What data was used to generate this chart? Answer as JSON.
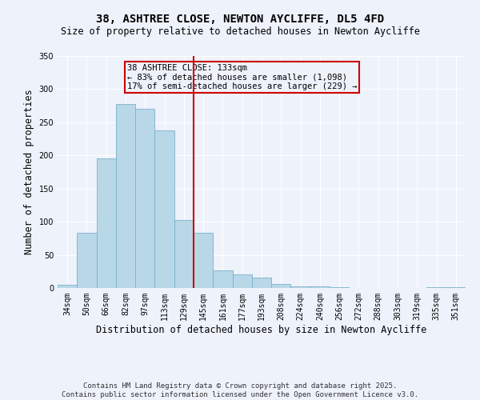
{
  "title": "38, ASHTREE CLOSE, NEWTON AYCLIFFE, DL5 4FD",
  "subtitle": "Size of property relative to detached houses in Newton Aycliffe",
  "xlabel": "Distribution of detached houses by size in Newton Aycliffe",
  "ylabel": "Number of detached properties",
  "categories": [
    "34sqm",
    "50sqm",
    "66sqm",
    "82sqm",
    "97sqm",
    "113sqm",
    "129sqm",
    "145sqm",
    "161sqm",
    "177sqm",
    "193sqm",
    "208sqm",
    "224sqm",
    "240sqm",
    "256sqm",
    "272sqm",
    "288sqm",
    "303sqm",
    "319sqm",
    "335sqm",
    "351sqm"
  ],
  "values": [
    5,
    83,
    195,
    277,
    270,
    238,
    103,
    83,
    27,
    20,
    16,
    6,
    3,
    2,
    1,
    0,
    0,
    0,
    0,
    1,
    1
  ],
  "bar_color": "#b8d8e8",
  "bar_edge_color": "#7ab0cc",
  "vline_x_index": 6,
  "vline_color": "#cc0000",
  "annotation_box_text": "38 ASHTREE CLOSE: 133sqm\n← 83% of detached houses are smaller (1,098)\n17% of semi-detached houses are larger (229) →",
  "annotation_box_color": "#cc0000",
  "ylim": [
    0,
    350
  ],
  "yticks": [
    0,
    50,
    100,
    150,
    200,
    250,
    300,
    350
  ],
  "footer_line1": "Contains HM Land Registry data © Crown copyright and database right 2025.",
  "footer_line2": "Contains public sector information licensed under the Open Government Licence v3.0.",
  "background_color": "#eef2fb",
  "grid_color": "#ffffff",
  "title_fontsize": 10,
  "subtitle_fontsize": 8.5,
  "axis_label_fontsize": 8.5,
  "tick_fontsize": 7,
  "annotation_fontsize": 7.5,
  "footer_fontsize": 6.5
}
